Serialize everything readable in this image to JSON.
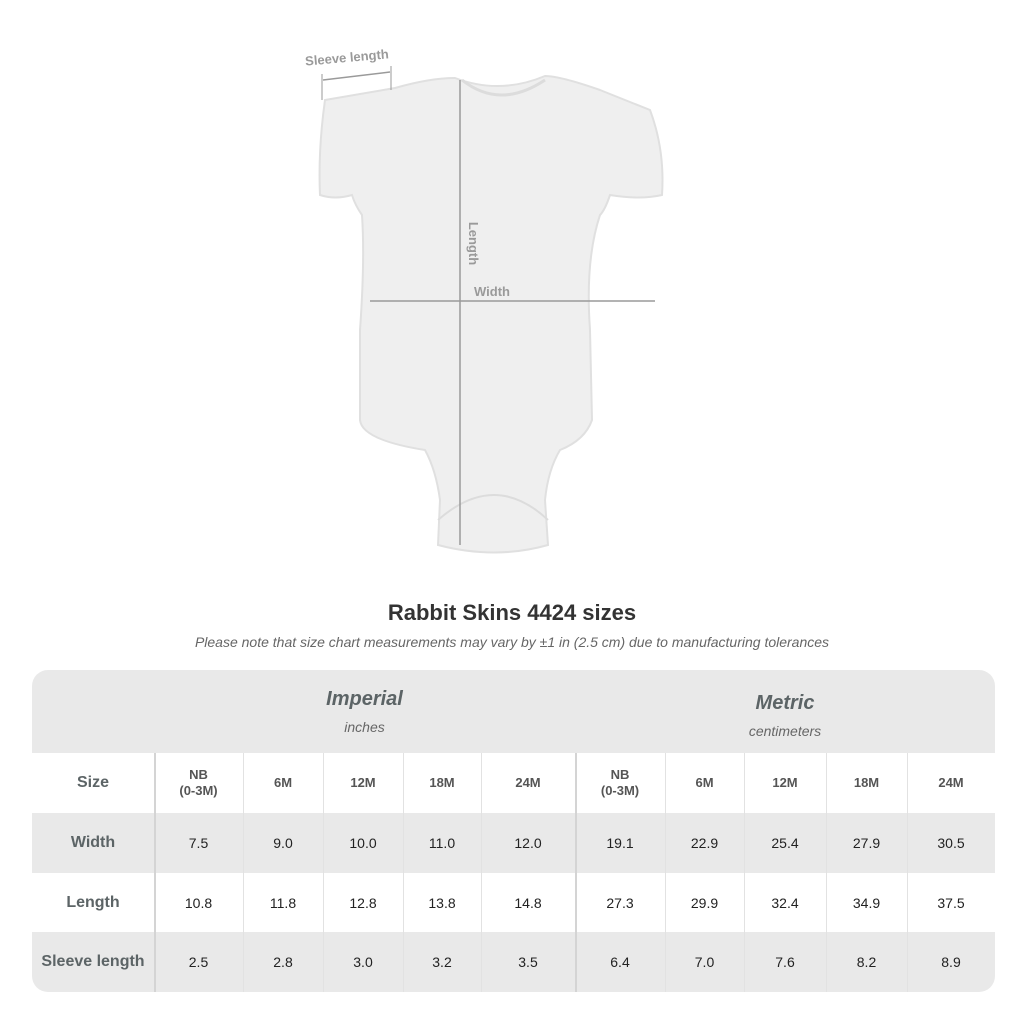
{
  "diagram": {
    "labels": {
      "sleeve": "Sleeve length",
      "length": "Length",
      "width": "Width"
    },
    "garment_color": "#efefef"
  },
  "title": "Rabbit Skins 4424 sizes",
  "note": "Please note that size chart measurements may vary by ±1 in (2.5 cm) due to manufacturing tolerances",
  "table": {
    "imperial": {
      "name": "Imperial",
      "unit": "inches"
    },
    "metric": {
      "name": "Metric",
      "unit": "centimeters"
    },
    "size_label": "Size",
    "sizes": [
      "NB\n(0-3M)",
      "6M",
      "12M",
      "18M",
      "24M"
    ],
    "rows": [
      {
        "label": "Width",
        "imperial": [
          "7.5",
          "9.0",
          "10.0",
          "11.0",
          "12.0"
        ],
        "metric": [
          "19.1",
          "22.9",
          "25.4",
          "27.9",
          "30.5"
        ]
      },
      {
        "label": "Length",
        "imperial": [
          "10.8",
          "11.8",
          "12.8",
          "13.8",
          "14.8"
        ],
        "metric": [
          "27.3",
          "29.9",
          "32.4",
          "34.9",
          "37.5"
        ]
      },
      {
        "label": "Sleeve length",
        "imperial": [
          "2.5",
          "2.8",
          "3.0",
          "3.2",
          "3.5"
        ],
        "metric": [
          "6.4",
          "7.0",
          "7.6",
          "8.2",
          "8.9"
        ]
      }
    ]
  }
}
